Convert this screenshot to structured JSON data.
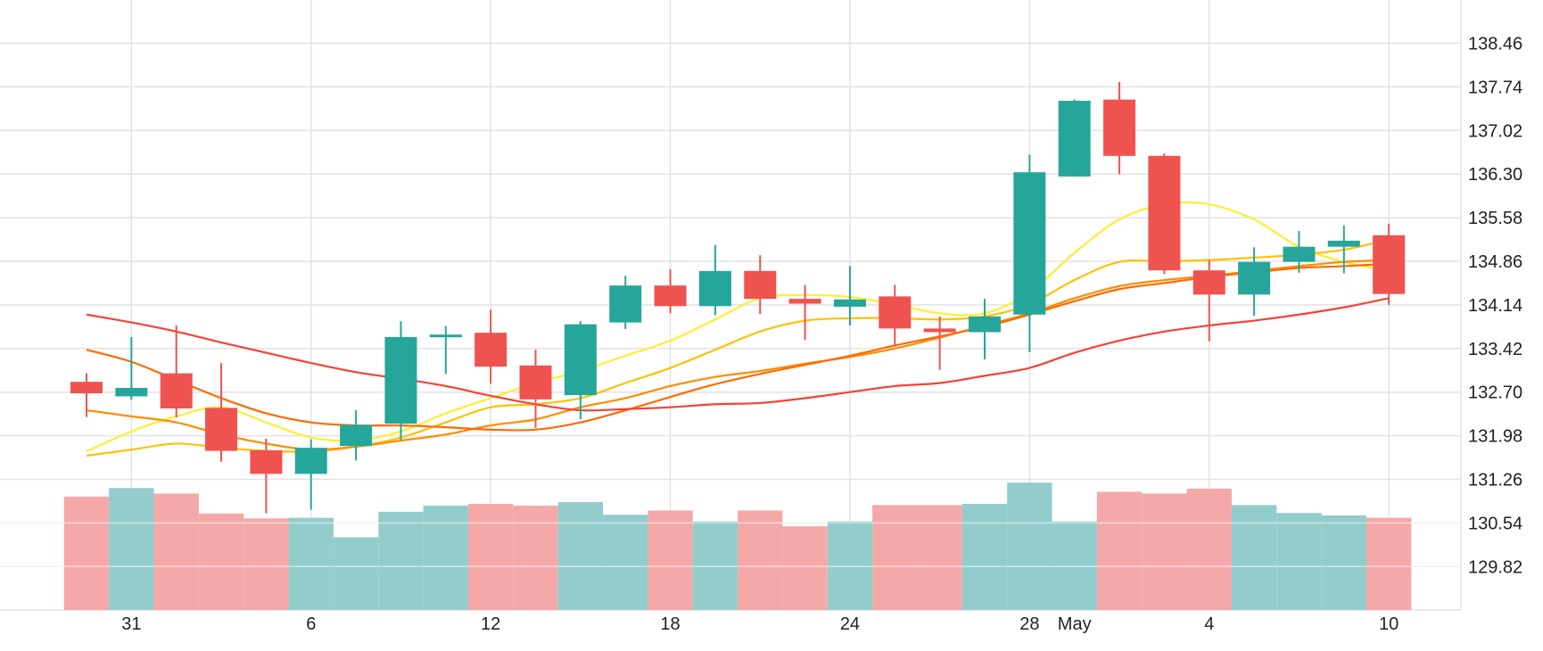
{
  "chart_data": {
    "type": "candlestick",
    "x_ticks": [
      {
        "label": "31",
        "index": 1
      },
      {
        "label": "6",
        "index": 5
      },
      {
        "label": "12",
        "index": 9
      },
      {
        "label": "18",
        "index": 13
      },
      {
        "label": "24",
        "index": 17
      },
      {
        "label": "28",
        "index": 21
      },
      {
        "label": "May",
        "index": 22
      },
      {
        "label": "4",
        "index": 25
      },
      {
        "label": "10",
        "index": 29
      }
    ],
    "y_ticks": [
      "138.46",
      "137.74",
      "137.02",
      "136.30",
      "135.58",
      "134.86",
      "134.14",
      "133.42",
      "132.70",
      "131.98",
      "131.26",
      "130.54",
      "129.82"
    ],
    "ylim": [
      129.37,
      138.83
    ],
    "grid": true,
    "colors": {
      "up": "#26a69a",
      "down": "#ef5350",
      "vol_up": "#92cdcc",
      "vol_down": "#f4a9a8",
      "grid": "#e3e3e3"
    },
    "candles": [
      {
        "open": 132.87,
        "high": 133.01,
        "low": 132.29,
        "close": 132.68
      },
      {
        "open": 132.63,
        "high": 133.61,
        "low": 132.57,
        "close": 132.77
      },
      {
        "open": 133.01,
        "high": 133.8,
        "low": 132.28,
        "close": 132.43
      },
      {
        "open": 132.44,
        "high": 133.18,
        "low": 131.55,
        "close": 131.73
      },
      {
        "open": 131.74,
        "high": 131.93,
        "low": 130.7,
        "close": 131.35
      },
      {
        "open": 131.35,
        "high": 131.92,
        "low": 130.76,
        "close": 131.78
      },
      {
        "open": 131.81,
        "high": 132.4,
        "low": 131.57,
        "close": 132.16
      },
      {
        "open": 132.18,
        "high": 133.87,
        "low": 131.91,
        "close": 133.61
      },
      {
        "open": 133.65,
        "high": 133.79,
        "low": 133.0,
        "close": 133.65
      },
      {
        "open": 133.68,
        "high": 134.06,
        "low": 132.84,
        "close": 133.12
      },
      {
        "open": 133.14,
        "high": 133.4,
        "low": 132.11,
        "close": 132.58
      },
      {
        "open": 132.65,
        "high": 133.87,
        "low": 132.25,
        "close": 133.82
      },
      {
        "open": 133.85,
        "high": 134.62,
        "low": 133.74,
        "close": 134.46
      },
      {
        "open": 134.46,
        "high": 134.73,
        "low": 134.0,
        "close": 134.12
      },
      {
        "open": 134.12,
        "high": 135.13,
        "low": 133.97,
        "close": 134.7
      },
      {
        "open": 134.7,
        "high": 134.96,
        "low": 133.99,
        "close": 134.24
      },
      {
        "open": 134.24,
        "high": 134.47,
        "low": 133.56,
        "close": 134.16
      },
      {
        "open": 134.11,
        "high": 134.78,
        "low": 133.8,
        "close": 134.23
      },
      {
        "open": 134.28,
        "high": 134.47,
        "low": 133.45,
        "close": 133.75
      },
      {
        "open": 133.75,
        "high": 133.95,
        "low": 133.07,
        "close": 133.69
      },
      {
        "open": 133.69,
        "high": 134.24,
        "low": 133.24,
        "close": 133.95
      },
      {
        "open": 133.98,
        "high": 136.62,
        "low": 133.36,
        "close": 136.33
      },
      {
        "open": 136.26,
        "high": 137.53,
        "low": 136.26,
        "close": 137.51
      },
      {
        "open": 137.53,
        "high": 137.82,
        "low": 136.3,
        "close": 136.6
      },
      {
        "open": 136.6,
        "high": 136.64,
        "low": 134.65,
        "close": 134.71
      },
      {
        "open": 134.71,
        "high": 134.88,
        "low": 133.54,
        "close": 134.31
      },
      {
        "open": 134.31,
        "high": 135.09,
        "low": 133.96,
        "close": 134.85
      },
      {
        "open": 134.85,
        "high": 135.36,
        "low": 134.67,
        "close": 135.1
      },
      {
        "open": 135.1,
        "high": 135.45,
        "low": 134.66,
        "close": 135.2
      },
      {
        "open": 135.29,
        "high": 135.48,
        "low": 134.14,
        "close": 134.32
      }
    ],
    "volume": [
      {
        "value": 1.87,
        "up": false
      },
      {
        "value": 2.01,
        "up": true
      },
      {
        "value": 1.92,
        "up": false
      },
      {
        "value": 1.59,
        "up": false
      },
      {
        "value": 1.51,
        "up": false
      },
      {
        "value": 1.52,
        "up": true
      },
      {
        "value": 1.2,
        "up": true
      },
      {
        "value": 1.62,
        "up": true
      },
      {
        "value": 1.72,
        "up": true
      },
      {
        "value": 1.75,
        "up": false
      },
      {
        "value": 1.72,
        "up": false
      },
      {
        "value": 1.78,
        "up": true
      },
      {
        "value": 1.57,
        "up": true
      },
      {
        "value": 1.64,
        "up": false
      },
      {
        "value": 1.46,
        "up": true
      },
      {
        "value": 1.64,
        "up": false
      },
      {
        "value": 1.38,
        "up": false
      },
      {
        "value": 1.46,
        "up": true
      },
      {
        "value": 1.73,
        "up": false
      },
      {
        "value": 1.73,
        "up": false
      },
      {
        "value": 1.75,
        "up": true
      },
      {
        "value": 2.1,
        "up": true
      },
      {
        "value": 1.46,
        "up": true
      },
      {
        "value": 1.95,
        "up": false
      },
      {
        "value": 1.92,
        "up": false
      },
      {
        "value": 2.0,
        "up": false
      },
      {
        "value": 1.73,
        "up": true
      },
      {
        "value": 1.6,
        "up": true
      },
      {
        "value": 1.56,
        "up": true
      },
      {
        "value": 1.52,
        "up": false
      }
    ],
    "volume_max": 3.0,
    "lines": [
      {
        "color": "#ffee33",
        "values": [
          131.72,
          132.05,
          132.3,
          132.45,
          132.2,
          131.95,
          131.9,
          132.05,
          132.35,
          132.6,
          132.85,
          133.05,
          133.3,
          133.55,
          133.9,
          134.25,
          134.3,
          134.27,
          134.15,
          134.0,
          134.0,
          134.35,
          135.0,
          135.55,
          135.8,
          135.8,
          135.55,
          135.1,
          134.85,
          134.7
        ]
      },
      {
        "color": "#ffc107",
        "values": [
          131.65,
          131.75,
          131.85,
          131.78,
          131.73,
          131.72,
          131.8,
          131.95,
          132.2,
          132.45,
          132.5,
          132.6,
          132.85,
          133.1,
          133.4,
          133.7,
          133.88,
          133.92,
          133.92,
          133.9,
          133.95,
          134.15,
          134.55,
          134.85,
          134.86,
          134.88,
          134.92,
          134.97,
          135.05,
          135.22
        ]
      },
      {
        "color": "#ff8c00",
        "values": [
          132.4,
          132.3,
          132.2,
          132.0,
          131.85,
          131.75,
          131.8,
          131.9,
          132.0,
          132.15,
          132.25,
          132.45,
          132.6,
          132.8,
          132.95,
          133.05,
          133.17,
          133.28,
          133.42,
          133.6,
          133.8,
          134.0,
          134.25,
          134.45,
          134.55,
          134.62,
          134.7,
          134.78,
          134.85,
          134.88
        ]
      },
      {
        "color": "#ff6a00",
        "values": [
          133.4,
          133.2,
          132.9,
          132.6,
          132.35,
          132.2,
          132.15,
          132.15,
          132.12,
          132.08,
          132.08,
          132.2,
          132.4,
          132.62,
          132.83,
          133.0,
          133.15,
          133.3,
          133.47,
          133.62,
          133.78,
          133.98,
          134.2,
          134.4,
          134.5,
          134.6,
          134.68,
          134.75,
          134.78,
          134.82
        ]
      },
      {
        "color": "#f44336",
        "values": [
          133.98,
          133.85,
          133.7,
          133.52,
          133.35,
          133.18,
          133.03,
          132.92,
          132.8,
          132.64,
          132.5,
          132.4,
          132.42,
          132.45,
          132.5,
          132.52,
          132.6,
          132.7,
          132.8,
          132.85,
          132.97,
          133.1,
          133.35,
          133.55,
          133.7,
          133.8,
          133.88,
          133.98,
          134.1,
          134.25
        ]
      }
    ]
  }
}
